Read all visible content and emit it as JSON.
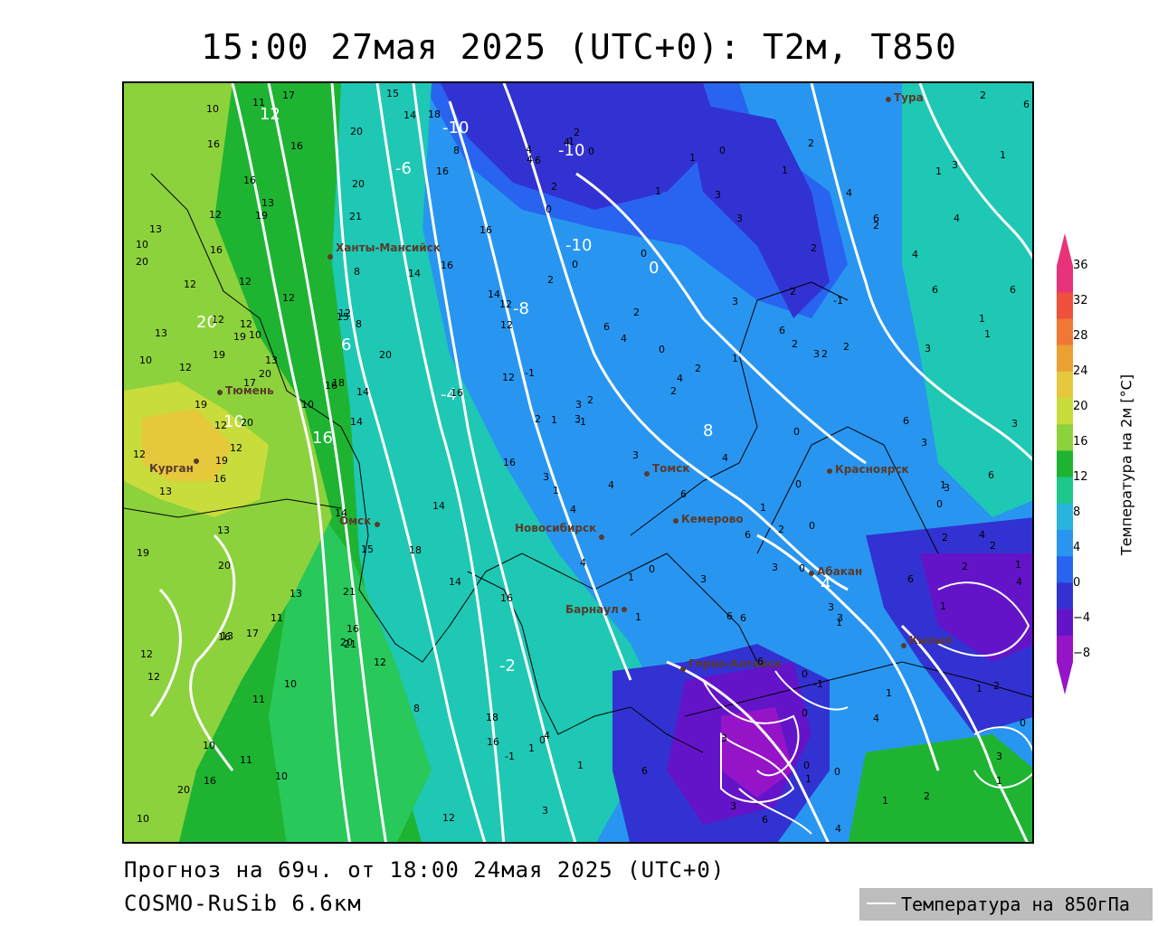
{
  "title": "15:00 27мая 2025 (UTC+0): T2м, T850",
  "footer": {
    "forecast": "Прогноз на 69ч. от 18:00 24мая 2025 (UTC+0)",
    "model": "COSMO-RuSib 6.6км",
    "legend_label": "Температура на 850гПа"
  },
  "colorbar": {
    "title": "Температура на 2м [°C]",
    "ticks": [
      "36",
      "32",
      "28",
      "24",
      "20",
      "16",
      "12",
      "8",
      "4",
      "0",
      "−4",
      "−8"
    ],
    "colors": [
      "#e8327a",
      "#f0503c",
      "#f07832",
      "#eba032",
      "#e6c83c",
      "#c8dc3c",
      "#8cd23c",
      "#1eb432",
      "#1ec88c",
      "#28b4dc",
      "#2896f0",
      "#2864f0",
      "#3232d2",
      "#6414c8",
      "#9614c8"
    ]
  },
  "cities": [
    {
      "name": "Тура"
    },
    {
      "name": "Ханты-Мансийск"
    },
    {
      "name": "Тюмень"
    },
    {
      "name": "Курган"
    },
    {
      "name": "Омск"
    },
    {
      "name": "Новосибирск"
    },
    {
      "name": "Томск"
    },
    {
      "name": "Кемерово"
    },
    {
      "name": "Красноярск"
    },
    {
      "name": "Абакан"
    },
    {
      "name": "Барнаул"
    },
    {
      "name": "Горно-Алтайск"
    },
    {
      "name": "Кызыл"
    }
  ],
  "isotherm_labels": [
    "-10",
    "-10",
    "-10",
    "-8",
    "-6",
    "-4",
    "-2",
    "0",
    "4",
    "6",
    "8",
    "10",
    "12",
    "16",
    "20"
  ],
  "station_values": [
    "19",
    "16",
    "13",
    "12",
    "10",
    "11",
    "17",
    "20",
    "18",
    "21",
    "20",
    "15",
    "14",
    "16",
    "12",
    "8",
    "6",
    "4",
    "3",
    "2",
    "1",
    "0",
    "-1",
    "0",
    "1",
    "2",
    "3",
    "4",
    "5",
    "6",
    "7",
    "9",
    "10",
    "11",
    "13",
    "15",
    "17",
    "19",
    "20",
    "18",
    "16",
    "14",
    "12",
    "10",
    "8",
    "6",
    "5",
    "4",
    "3",
    "2",
    "1",
    "0",
    "-1",
    "-2"
  ]
}
